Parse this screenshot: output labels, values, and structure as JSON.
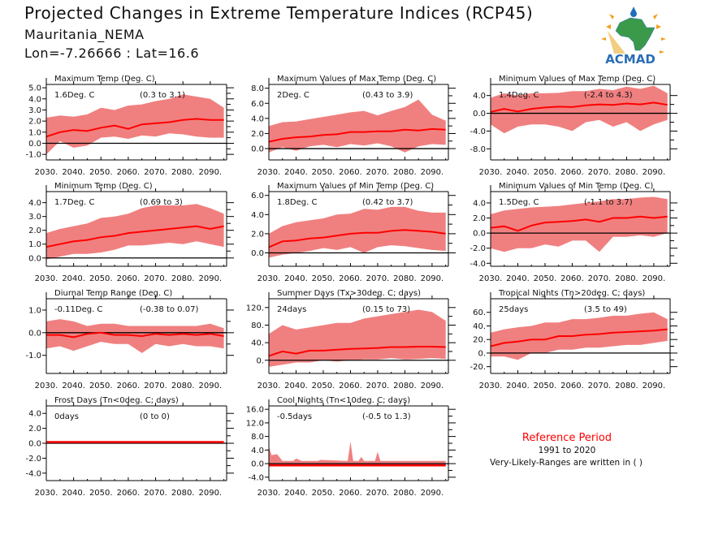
{
  "header": {
    "title": "Projected Changes in Extreme Temperature Indices (RCP45)",
    "station": "Mauritania_NEMA",
    "location": "Lon=-7.26666 : Lat=16.6"
  },
  "logo": {
    "text": "ACMAD",
    "colors": {
      "africa": "#3a9a4a",
      "drop": "#1e6fb8",
      "text": "#2a6db5",
      "rays": "#f0a020"
    }
  },
  "legend": {
    "reference_label": "Reference Period",
    "reference_years": "1991 to 2020",
    "note": "Very-Likely-Ranges are written in ( )",
    "reference_color": "#ff0000"
  },
  "colors": {
    "median": "#ff0000",
    "range": "#f08080",
    "zero_line": "#000000"
  },
  "chart_data": [
    {
      "type": "area",
      "title": "Maximum Temp (Deg. C)",
      "median_label": "1.6Deg. C",
      "range_label": "(0.3 to 3.1)",
      "ylim": [
        -1.5,
        5.3
      ],
      "yticks": [
        -1,
        0,
        1,
        2,
        3,
        4,
        5
      ],
      "ytick_labels": [
        "-1.0",
        "0.0",
        "1.0",
        "2.0",
        "3.0",
        "4.0",
        "5.0"
      ],
      "xlim": [
        2030,
        2096
      ],
      "xticks": [
        2030,
        2040,
        2050,
        2060,
        2070,
        2080,
        2090
      ],
      "xtick_labels": [
        "2030.",
        "2040.",
        "2050.",
        "2060.",
        "2070.",
        "2080.",
        "2090."
      ],
      "x": [
        2030,
        2035,
        2040,
        2045,
        2050,
        2055,
        2060,
        2065,
        2070,
        2075,
        2080,
        2085,
        2090,
        2095
      ],
      "median": [
        0.6,
        1.0,
        1.2,
        1.1,
        1.4,
        1.6,
        1.3,
        1.7,
        1.8,
        1.9,
        2.1,
        2.2,
        2.1,
        2.1
      ],
      "lower": [
        -1.0,
        0.2,
        -0.4,
        -0.2,
        0.5,
        0.6,
        0.4,
        0.7,
        0.6,
        0.9,
        0.8,
        0.6,
        0.5,
        0.5
      ],
      "upper": [
        2.3,
        2.5,
        2.4,
        2.6,
        3.2,
        3.0,
        3.4,
        3.5,
        3.8,
        4.0,
        4.4,
        4.2,
        4.0,
        3.2
      ]
    },
    {
      "type": "area",
      "title": "Maximum Values of Max Temp (Deg. C)",
      "median_label": "2Deg. C",
      "range_label": "(0.43 to 3.9)",
      "ylim": [
        -1.5,
        8.5
      ],
      "yticks": [
        0,
        2,
        4,
        6,
        8
      ],
      "ytick_labels": [
        "0.0",
        "2.0",
        "4.0",
        "6.0",
        "8.0"
      ],
      "xlim": [
        2030,
        2096
      ],
      "xticks": [
        2030,
        2040,
        2050,
        2060,
        2070,
        2080,
        2090
      ],
      "xtick_labels": [
        "2030.",
        "2040.",
        "2050.",
        "2060.",
        "2070.",
        "2080.",
        "2090."
      ],
      "x": [
        2030,
        2035,
        2040,
        2045,
        2050,
        2055,
        2060,
        2065,
        2070,
        2075,
        2080,
        2085,
        2090,
        2095
      ],
      "median": [
        0.9,
        1.3,
        1.5,
        1.6,
        1.8,
        1.9,
        2.2,
        2.2,
        2.3,
        2.3,
        2.5,
        2.4,
        2.6,
        2.5
      ],
      "lower": [
        -0.5,
        0.2,
        -0.3,
        0.3,
        0.5,
        0.2,
        0.6,
        0.4,
        0.7,
        0.3,
        -0.5,
        0.3,
        0.6,
        0.5
      ],
      "upper": [
        3.0,
        3.5,
        3.6,
        3.9,
        4.2,
        4.5,
        4.8,
        5.0,
        4.4,
        5.0,
        5.5,
        6.5,
        4.5,
        3.7
      ]
    },
    {
      "type": "area",
      "title": "Minimum Values of Max Temp (Deg. C)",
      "median_label": "1.4Deg. C",
      "range_label": "(-2.4 to 4.3)",
      "ylim": [
        -10.5,
        6.5
      ],
      "yticks": [
        -8,
        -4,
        0,
        4
      ],
      "ytick_labels": [
        "-8.0",
        "-4.0",
        "0.0",
        "4.0"
      ],
      "xlim": [
        2030,
        2096
      ],
      "xticks": [
        2030,
        2040,
        2050,
        2060,
        2070,
        2080,
        2090
      ],
      "xtick_labels": [
        "2030.",
        "2040.",
        "2050.",
        "2060.",
        "2070.",
        "2080.",
        "2090."
      ],
      "x": [
        2030,
        2035,
        2040,
        2045,
        2050,
        2055,
        2060,
        2065,
        2070,
        2075,
        2080,
        2085,
        2090,
        2095
      ],
      "median": [
        0.3,
        1.0,
        0.4,
        1.0,
        1.3,
        1.5,
        1.4,
        1.8,
        2.0,
        1.9,
        2.2,
        2.0,
        2.4,
        1.9
      ],
      "lower": [
        -2.5,
        -4.5,
        -3,
        -2.5,
        -2.5,
        -3,
        -4,
        -2,
        -1.5,
        -3,
        -2,
        -4,
        -2.5,
        -1.5
      ],
      "upper": [
        3.5,
        4.5,
        4.0,
        4.5,
        4.5,
        4.6,
        5.0,
        5.0,
        5.5,
        5.2,
        6.0,
        5.5,
        6.2,
        4.5
      ]
    },
    {
      "type": "area",
      "title": "Minimum Temp (Deg. C)",
      "median_label": "1.7Deg. C",
      "range_label": "(0.69 to 3)",
      "ylim": [
        -0.6,
        4.8
      ],
      "yticks": [
        0,
        1,
        2,
        3,
        4
      ],
      "ytick_labels": [
        "0.0",
        "1.0",
        "2.0",
        "3.0",
        "4.0"
      ],
      "xlim": [
        2030,
        2096
      ],
      "xticks": [
        2030,
        2040,
        2050,
        2060,
        2070,
        2080,
        2090
      ],
      "xtick_labels": [
        "2030.",
        "2040.",
        "2050.",
        "2060.",
        "2070.",
        "2080.",
        "2090."
      ],
      "x": [
        2030,
        2035,
        2040,
        2045,
        2050,
        2055,
        2060,
        2065,
        2070,
        2075,
        2080,
        2085,
        2090,
        2095
      ],
      "median": [
        0.8,
        1.0,
        1.2,
        1.3,
        1.5,
        1.6,
        1.8,
        1.9,
        2.0,
        2.1,
        2.2,
        2.3,
        2.1,
        2.3
      ],
      "lower": [
        -0.1,
        0.1,
        0.3,
        0.3,
        0.4,
        0.6,
        0.9,
        0.9,
        1.0,
        1.1,
        1.0,
        1.2,
        1.0,
        0.8
      ],
      "upper": [
        1.8,
        2.1,
        2.3,
        2.5,
        2.9,
        3.0,
        3.2,
        3.6,
        3.8,
        3.8,
        3.8,
        3.9,
        3.6,
        3.2
      ]
    },
    {
      "type": "area",
      "title": "Maximum Values of Min Temp (Deg. C)",
      "median_label": "1.8Deg. C",
      "range_label": "(0.42 to 3.7)",
      "ylim": [
        -1.4,
        6.4
      ],
      "yticks": [
        0,
        2,
        4,
        6
      ],
      "ytick_labels": [
        "0.0",
        "2.0",
        "4.0",
        "6.0"
      ],
      "xlim": [
        2030,
        2096
      ],
      "xticks": [
        2030,
        2040,
        2050,
        2060,
        2070,
        2080,
        2090
      ],
      "xtick_labels": [
        "2030.",
        "2040.",
        "2050.",
        "2060.",
        "2070.",
        "2080.",
        "2090."
      ],
      "x": [
        2030,
        2035,
        2040,
        2045,
        2050,
        2055,
        2060,
        2065,
        2070,
        2075,
        2080,
        2085,
        2090,
        2095
      ],
      "median": [
        0.6,
        1.2,
        1.3,
        1.5,
        1.6,
        1.8,
        2.0,
        2.1,
        2.1,
        2.3,
        2.4,
        2.3,
        2.2,
        2.0
      ],
      "lower": [
        -0.5,
        -0.2,
        0.0,
        0.2,
        0.5,
        0.3,
        0.6,
        0.0,
        0.6,
        0.8,
        0.7,
        0.5,
        0.3,
        0.2
      ],
      "upper": [
        2.0,
        2.8,
        3.2,
        3.4,
        3.6,
        4.0,
        4.1,
        4.6,
        4.5,
        4.8,
        4.8,
        4.4,
        4.2,
        4.2
      ]
    },
    {
      "type": "area",
      "title": "Minimum Values of Min Temp (Deg. C)",
      "median_label": "1.5Deg. C",
      "range_label": "(-1.1 to 3.7)",
      "ylim": [
        -4.4,
        5.5
      ],
      "yticks": [
        -4,
        -2,
        0,
        2,
        4
      ],
      "ytick_labels": [
        "-4.0",
        "-2.0",
        "0.0",
        "2.0",
        "4.0"
      ],
      "xlim": [
        2030,
        2096
      ],
      "xticks": [
        2030,
        2040,
        2050,
        2060,
        2070,
        2080,
        2090
      ],
      "xtick_labels": [
        "2030.",
        "2040.",
        "2050.",
        "2060.",
        "2070.",
        "2080.",
        "2090."
      ],
      "x": [
        2030,
        2035,
        2040,
        2045,
        2050,
        2055,
        2060,
        2065,
        2070,
        2075,
        2080,
        2085,
        2090,
        2095
      ],
      "median": [
        0.7,
        0.9,
        0.3,
        1.0,
        1.4,
        1.5,
        1.6,
        1.8,
        1.5,
        2.0,
        2.0,
        2.2,
        2.0,
        2.2
      ],
      "lower": [
        -2.0,
        -2.5,
        -2.0,
        -2.0,
        -1.5,
        -1.8,
        -1.0,
        -1.0,
        -2.5,
        -0.5,
        -0.5,
        -0.3,
        -0.5,
        0.0
      ],
      "upper": [
        2.5,
        3.0,
        3.2,
        3.4,
        3.5,
        3.6,
        3.8,
        4.0,
        4.2,
        4.5,
        4.5,
        4.7,
        4.8,
        4.5
      ]
    },
    {
      "type": "area",
      "title": "Diurnal Temp Range (Deg. C)",
      "median_label": "-0.11Deg. C",
      "range_label": "(-0.38 to 0.07)",
      "ylim": [
        -1.8,
        1.5
      ],
      "yticks": [
        -1,
        0,
        1
      ],
      "ytick_labels": [
        "-1.0",
        "0.0",
        "1.0"
      ],
      "xlim": [
        2030,
        2096
      ],
      "xticks": [
        2030,
        2040,
        2050,
        2060,
        2070,
        2080,
        2090
      ],
      "xtick_labels": [
        "2030.",
        "2040.",
        "2050.",
        "2060.",
        "2070.",
        "2080.",
        "2090."
      ],
      "x": [
        2030,
        2035,
        2040,
        2045,
        2050,
        2055,
        2060,
        2065,
        2070,
        2075,
        2080,
        2085,
        2090,
        2095
      ],
      "median": [
        -0.1,
        -0.1,
        -0.2,
        -0.05,
        0.0,
        -0.1,
        -0.1,
        -0.15,
        -0.05,
        -0.1,
        -0.05,
        -0.1,
        -0.05,
        -0.15
      ],
      "lower": [
        -0.7,
        -0.6,
        -0.8,
        -0.6,
        -0.4,
        -0.5,
        -0.5,
        -0.9,
        -0.5,
        -0.6,
        -0.5,
        -0.6,
        -0.6,
        -0.7
      ],
      "upper": [
        0.5,
        0.6,
        0.5,
        0.3,
        0.4,
        0.4,
        0.3,
        0.3,
        0.3,
        0.3,
        0.3,
        0.3,
        0.4,
        0.2
      ]
    },
    {
      "type": "area",
      "title": "Summer Days (Tx>30deg. C; days)",
      "median_label": "24days",
      "range_label": "(0.15 to 73)",
      "ylim": [
        -30,
        140
      ],
      "yticks": [
        0,
        40,
        80,
        120
      ],
      "ytick_labels": [
        "0.",
        "40.",
        "80.",
        "120."
      ],
      "xlim": [
        2030,
        2096
      ],
      "xticks": [
        2030,
        2040,
        2050,
        2060,
        2070,
        2080,
        2090
      ],
      "xtick_labels": [
        "2030.",
        "2040.",
        "2050.",
        "2060.",
        "2070.",
        "2080.",
        "2090."
      ],
      "x": [
        2030,
        2035,
        2040,
        2045,
        2050,
        2055,
        2060,
        2065,
        2070,
        2075,
        2080,
        2085,
        2090,
        2095
      ],
      "median": [
        10,
        20,
        15,
        22,
        22,
        24,
        26,
        27,
        28,
        30,
        30,
        31,
        31,
        30
      ],
      "lower": [
        -15,
        -10,
        -5,
        -5,
        0,
        -3,
        0,
        2,
        2,
        5,
        2,
        3,
        5,
        3
      ],
      "upper": [
        60,
        80,
        70,
        75,
        80,
        85,
        85,
        95,
        100,
        105,
        110,
        115,
        110,
        90
      ]
    },
    {
      "type": "area",
      "title": "Tropical Nights (Tn>20deg. C; days)",
      "median_label": "25days",
      "range_label": "(3.5 to 49)",
      "ylim": [
        -30,
        80
      ],
      "yticks": [
        -20,
        0,
        20,
        40,
        60
      ],
      "ytick_labels": [
        "-20.",
        "0.",
        "20.",
        "40.",
        "60."
      ],
      "xlim": [
        2030,
        2096
      ],
      "xticks": [
        2030,
        2040,
        2050,
        2060,
        2070,
        2080,
        2090
      ],
      "xtick_labels": [
        "2030.",
        "2040.",
        "2050.",
        "2060.",
        "2070.",
        "2080.",
        "2090."
      ],
      "x": [
        2030,
        2035,
        2040,
        2045,
        2050,
        2055,
        2060,
        2065,
        2070,
        2075,
        2080,
        2085,
        2090,
        2095
      ],
      "median": [
        10,
        15,
        17,
        20,
        20,
        25,
        25,
        27,
        28,
        30,
        31,
        32,
        33,
        35
      ],
      "lower": [
        -5,
        -5,
        -10,
        0,
        0,
        5,
        5,
        8,
        8,
        10,
        12,
        12,
        15,
        18
      ],
      "upper": [
        30,
        35,
        38,
        40,
        45,
        45,
        50,
        50,
        52,
        55,
        55,
        58,
        60,
        50
      ]
    },
    {
      "type": "area",
      "title": "Frost Days (Tn<0deg. C; days)",
      "median_label": "0days",
      "range_label": "(0 to 0)",
      "ylim": [
        -5,
        5
      ],
      "yticks": [
        -4,
        -2,
        0,
        2,
        4
      ],
      "ytick_labels": [
        "-4.0",
        "-2.0",
        "0.0",
        "2.0",
        "4.0"
      ],
      "xlim": [
        2030,
        2096
      ],
      "xticks": [
        2030,
        2040,
        2050,
        2060,
        2070,
        2080,
        2090
      ],
      "xtick_labels": [
        "2030.",
        "2040.",
        "2050.",
        "2060.",
        "2070.",
        "2080.",
        "2090."
      ],
      "x": [
        2030,
        2035,
        2040,
        2045,
        2050,
        2055,
        2060,
        2065,
        2070,
        2075,
        2080,
        2085,
        2090,
        2095
      ],
      "median": [
        0,
        0,
        0,
        0,
        0,
        0,
        0,
        0,
        0,
        0,
        0,
        0,
        0,
        0
      ],
      "lower": [
        0,
        0,
        0,
        0,
        0,
        0,
        0,
        0,
        0,
        0,
        0,
        0,
        0,
        0
      ],
      "upper": [
        0,
        0,
        0,
        0,
        0,
        0,
        0,
        0,
        0,
        0,
        0,
        0,
        0,
        0
      ]
    },
    {
      "type": "area",
      "title": "Cool Nights (Tn<10deg. C; days)",
      "median_label": "-0.5days",
      "range_label": "(-0.5 to 1.3)",
      "ylim": [
        -5,
        17
      ],
      "yticks": [
        -4,
        0,
        4,
        8,
        12,
        16
      ],
      "ytick_labels": [
        "-4.0",
        "0.0",
        "4.0",
        "8.0",
        "12.0",
        "16.0"
      ],
      "xlim": [
        2030,
        2096
      ],
      "xticks": [
        2030,
        2040,
        2050,
        2060,
        2070,
        2080,
        2090
      ],
      "xtick_labels": [
        "2030.",
        "2040.",
        "2050.",
        "2060.",
        "2070.",
        "2080.",
        "2090."
      ],
      "x": [
        2030,
        2031,
        2033,
        2035,
        2039,
        2040,
        2042,
        2048,
        2049,
        2059,
        2060,
        2061,
        2063,
        2064,
        2065,
        2069,
        2070,
        2071,
        2095
      ],
      "median": [
        -0.5,
        -0.5,
        -0.5,
        -0.5,
        -0.5,
        -0.5,
        -0.5,
        -0.5,
        -0.5,
        -0.5,
        -0.5,
        -0.5,
        -0.5,
        -0.5,
        -0.5,
        -0.5,
        -0.5,
        -0.5,
        -0.5
      ],
      "lower": [
        -0.5,
        -0.5,
        -0.5,
        -0.5,
        -0.5,
        -0.5,
        -0.5,
        -0.5,
        -0.5,
        -0.5,
        -0.5,
        -0.5,
        -0.5,
        -0.5,
        -0.5,
        -0.5,
        -0.5,
        -0.5,
        -0.5
      ],
      "upper": [
        5.0,
        2.5,
        2.8,
        0.8,
        0.8,
        1.5,
        0.8,
        0.8,
        1.1,
        0.8,
        6.5,
        0.8,
        0.8,
        2.0,
        0.8,
        0.8,
        3.5,
        0.8,
        0.8
      ]
    }
  ]
}
